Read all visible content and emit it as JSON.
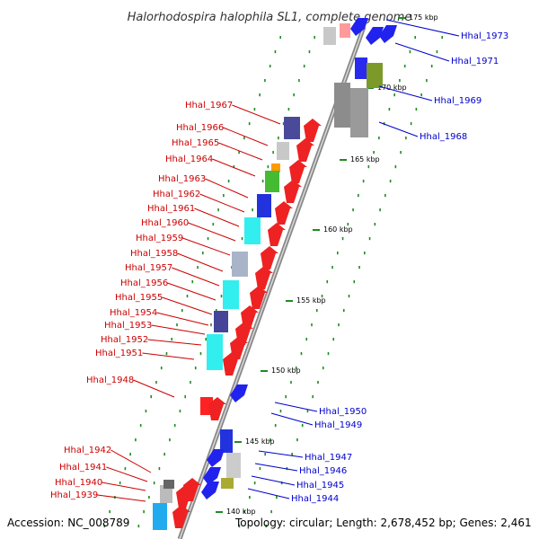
{
  "title": "Halorhodospira halophila SL1, complete genome",
  "footer": {
    "accession": "Accession: NC_008789",
    "topology": "Topology: circular; Length: 2,678,452 bp; Genes: 2,461"
  },
  "colors": {
    "forward_label": "#cc0000",
    "reverse_label": "#0000cc",
    "ticks": "#228b22"
  },
  "kbp_ticks": [
    "175 kbp",
    "170 kbp",
    "165 kbp",
    "160 kbp",
    "155 kbp",
    "150 kbp",
    "145 kbp",
    "140 kbp"
  ],
  "forward_genes": [
    "Hhal_1967",
    "Hhal_1966",
    "Hhal_1965",
    "Hhal_1964",
    "Hhal_1963",
    "Hhal_1962",
    "Hhal_1961",
    "Hhal_1960",
    "Hhal_1959",
    "Hhal_1958",
    "Hhal_1957",
    "Hhal_1956",
    "Hhal_1955",
    "Hhal_1954",
    "Hhal_1953",
    "Hhal_1952",
    "Hhal_1951",
    "Hhal_1948",
    "Hhal_1942",
    "Hhal_1941",
    "Hhal_1940",
    "Hhal_1939"
  ],
  "reverse_genes": [
    "Hhal_1973",
    "Hhal_1971",
    "Hhal_1969",
    "Hhal_1968",
    "Hhal_1950",
    "Hhal_1949",
    "Hhal_1947",
    "Hhal_1946",
    "Hhal_1945",
    "Hhal_1944"
  ]
}
